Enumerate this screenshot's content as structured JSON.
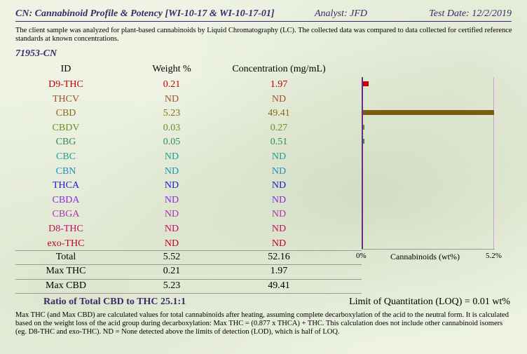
{
  "header": {
    "title": "CN: Cannabinoid Profile & Potency [WI-10-17 & WI-10-17-01]",
    "analyst": "Analyst: JFD",
    "test_date": "Test Date: 12/2/2019"
  },
  "intro_text": "The client sample was analyzed for plant-based cannabinoids by Liquid Chromatography (LC).  The collected data was compared to data collected for certified reference standards at known concentrations.",
  "sample_id": "71953-CN",
  "table": {
    "headers": {
      "id": "ID",
      "weight": "Weight %",
      "concentration": "Concentration (mg/mL)"
    },
    "rows": [
      {
        "id": "D9-THC",
        "weight": "0.21",
        "concentration": "1.97",
        "color": "#c00000"
      },
      {
        "id": "THCV",
        "weight": "ND",
        "concentration": "ND",
        "color": "#a0522d"
      },
      {
        "id": "CBD",
        "weight": "5.23",
        "concentration": "49.41",
        "color": "#8b6914"
      },
      {
        "id": "CBDV",
        "weight": "0.03",
        "concentration": "0.27",
        "color": "#6b8e23"
      },
      {
        "id": "CBG",
        "weight": "0.05",
        "concentration": "0.51",
        "color": "#2e8b57"
      },
      {
        "id": "CBC",
        "weight": "ND",
        "concentration": "ND",
        "color": "#20a090"
      },
      {
        "id": "CBN",
        "weight": "ND",
        "concentration": "ND",
        "color": "#1e90c0"
      },
      {
        "id": "THCA",
        "weight": "ND",
        "concentration": "ND",
        "color": "#1a1ad0"
      },
      {
        "id": "CBDA",
        "weight": "ND",
        "concentration": "ND",
        "color": "#8a2be2"
      },
      {
        "id": "CBGA",
        "weight": "ND",
        "concentration": "ND",
        "color": "#b030b0"
      },
      {
        "id": "D8-THC",
        "weight": "ND",
        "concentration": "ND",
        "color": "#c01060"
      },
      {
        "id": "exo-THC",
        "weight": "ND",
        "concentration": "ND",
        "color": "#c00020"
      }
    ],
    "summary": [
      {
        "id": "Total",
        "weight": "5.52",
        "concentration": "52.16"
      },
      {
        "id": "Max THC",
        "weight": "0.21",
        "concentration": "1.97"
      },
      {
        "id": "Max CBD",
        "weight": "5.23",
        "concentration": "49.41"
      }
    ]
  },
  "chart_data": {
    "type": "bar",
    "orientation": "horizontal",
    "categories": [
      "D9-THC",
      "THCV",
      "CBD",
      "CBDV",
      "CBG",
      "CBC",
      "CBN",
      "THCA",
      "CBDA",
      "CBGA",
      "D8-THC",
      "exo-THC"
    ],
    "values": [
      0.21,
      0,
      5.23,
      0.03,
      0.05,
      0,
      0,
      0,
      0,
      0,
      0,
      0
    ],
    "bar_colors": [
      "#c00000",
      "#a0522d",
      "#7a5c10",
      "#6b8e23",
      "#2e8b57",
      "#20a090",
      "#1e90c0",
      "#1a1ad0",
      "#8a2be2",
      "#b030b0",
      "#c01060",
      "#c00020"
    ],
    "xlim": [
      0,
      5.2
    ],
    "x_min_label": "0%",
    "x_max_label": "5.2%",
    "xlabel": "Cannabinoids (wt%)"
  },
  "ratio_text": "Ratio of Total CBD to THC   25.1:1",
  "loq_text": "Limit of Quantitation (LOQ) = 0.01 wt%",
  "footnote": "Max THC (and Max CBD) are calculated values for total cannabinoids after heating, assuming complete decarboxylation of the acid to the neutral form. It is calculated based on the weight loss of the acid group during decarboxylation:   Max THC = (0.877 x THCA) + THC.  This calculation does not include other cannabinoid isomers (eg. D8-THC and exo-THC).  ND = None detected above the limits of detection (LOD), which is half of LOQ."
}
